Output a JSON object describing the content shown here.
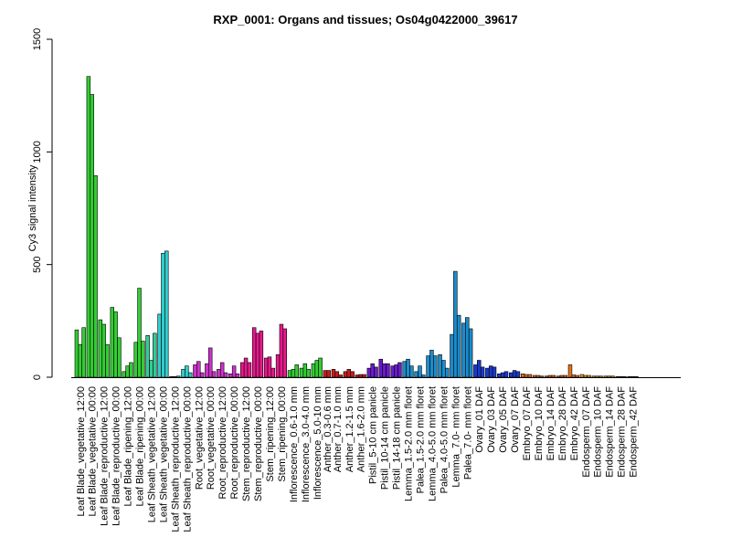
{
  "chart_data": {
    "type": "bar",
    "title": "RXP_0001: Organs and tissues; Os04g0422000_39617",
    "ylabel": "Cy3 signal intensity",
    "xlabel": "",
    "ylim": [
      0,
      1500
    ],
    "yticks": [
      0,
      500,
      1000,
      1500
    ],
    "grid": false,
    "groups": [
      {
        "label": "Leaf Blade_vegetative_12:00",
        "color": "#33cc33",
        "values": [
          210,
          145,
          220
        ]
      },
      {
        "label": "Leaf Blade_vegetative_00:00",
        "color": "#33cc33",
        "values": [
          1335,
          1255,
          895
        ]
      },
      {
        "label": "Leaf Blade_reproductive_12:00",
        "color": "#33cc33",
        "values": [
          255,
          235,
          145
        ]
      },
      {
        "label": "Leaf Blade_reproductive_00:00",
        "color": "#33cc33",
        "values": [
          310,
          290,
          175
        ]
      },
      {
        "label": "Leaf Blade_ripening_12:00",
        "color": "#33cc33",
        "values": [
          25,
          50,
          65
        ]
      },
      {
        "label": "Leaf Blade_ripening_00:00",
        "color": "#33cc33",
        "values": [
          155,
          395,
          160
        ]
      },
      {
        "label": "Leaf Sheath_vegetative_12:00",
        "color": "#33cc99",
        "values": [
          185,
          75,
          195
        ]
      },
      {
        "label": "Leaf Sheath_vegetative_00:00",
        "color": "#33cccc",
        "values": [
          280,
          550,
          560
        ]
      },
      {
        "label": "Leaf Sheath_reproductive_12:00",
        "color": "#33cccc",
        "values": [
          3,
          3,
          5
        ]
      },
      {
        "label": "Leaf Sheath_reproductive_00:00",
        "color": "#33cccc",
        "values": [
          35,
          50,
          20
        ]
      },
      {
        "label": "Root_vegetative_12:00",
        "color": "#cc33cc",
        "values": [
          55,
          70,
          20
        ]
      },
      {
        "label": "Root_vegetative_00:00",
        "color": "#cc33cc",
        "values": [
          60,
          130,
          25
        ]
      },
      {
        "label": "Root_reproductive_12:00",
        "color": "#cc33cc",
        "values": [
          35,
          65,
          20
        ]
      },
      {
        "label": "Root_reproductive_00:00",
        "color": "#cc33cc",
        "values": [
          15,
          50,
          15
        ]
      },
      {
        "label": "Stem_reproductive_12:00",
        "color": "#e61a8c",
        "values": [
          65,
          85,
          65
        ]
      },
      {
        "label": "Stem_reproductive_00:00",
        "color": "#e61a8c",
        "values": [
          220,
          195,
          205
        ]
      },
      {
        "label": "Stem_ripening_12:00",
        "color": "#e61a8c",
        "values": [
          85,
          90,
          40
        ]
      },
      {
        "label": "Stem_ripening_00:00",
        "color": "#e61a8c",
        "values": [
          100,
          235,
          215
        ]
      },
      {
        "label": "Inflorescence_0.6-1.0 mm",
        "color": "#33cc33",
        "values": [
          30,
          35,
          55
        ]
      },
      {
        "label": "Inflorescence_3.0-4.0 mm",
        "color": "#33cc33",
        "values": [
          40,
          60,
          35
        ]
      },
      {
        "label": "Inflorescence_5.0-10 mm",
        "color": "#33cc33",
        "values": [
          60,
          75,
          85
        ]
      },
      {
        "label": "Anther_0.3-0.6 mm",
        "color": "#cc1a1a",
        "values": [
          30,
          30
        ]
      },
      {
        "label": "Anther_0.7-1.0 mm",
        "color": "#cc1a1a",
        "values": [
          35,
          25,
          10
        ]
      },
      {
        "label": "Anther_1.2-1.5 mm",
        "color": "#cc1a1a",
        "values": [
          25,
          35,
          25
        ]
      },
      {
        "label": "Anther_1.6-2.0 mm",
        "color": "#cc1a1a",
        "values": [
          10,
          12,
          12
        ]
      },
      {
        "label": "Pistil_5-10 cm panicle",
        "color": "#6a1acc",
        "values": [
          40,
          60,
          45
        ]
      },
      {
        "label": "Pistil_10-14 cm panicle",
        "color": "#6a1acc",
        "values": [
          80,
          60,
          60
        ]
      },
      {
        "label": "Pistil_14-18 cm panicle",
        "color": "#6a1acc",
        "values": [
          50,
          55,
          65
        ]
      },
      {
        "label": "Lemma_1.5-2.0 mm floret",
        "color": "#1a8ccc",
        "values": [
          70,
          80,
          50
        ]
      },
      {
        "label": "Palea_1.5-2.0 mm floret",
        "color": "#1a8ccc",
        "values": [
          25,
          50,
          10
        ]
      },
      {
        "label": "Lemma_4.0-5.0 mm floret",
        "color": "#1a8ccc",
        "values": [
          95,
          120,
          95
        ]
      },
      {
        "label": "Palea_4.0-5.0 mm floret",
        "color": "#1a8ccc",
        "values": [
          100,
          75,
          40
        ]
      },
      {
        "label": "Lemma_7.0- mm floret",
        "color": "#1a8ccc",
        "values": [
          190,
          470,
          275
        ]
      },
      {
        "label": "Palea_7.0- mm floret",
        "color": "#1a8ccc",
        "values": [
          240,
          265,
          215
        ]
      },
      {
        "label": "Ovary_01 DAF",
        "color": "#1a3acc",
        "values": [
          55,
          75,
          45
        ]
      },
      {
        "label": "Ovary_03 DAF",
        "color": "#1a3acc",
        "values": [
          40,
          50,
          45
        ]
      },
      {
        "label": "Ovary_05 DAF",
        "color": "#1a3acc",
        "values": [
          15,
          20,
          25
        ]
      },
      {
        "label": "Ovary_07 DAF",
        "color": "#1a3acc",
        "values": [
          20,
          30,
          25
        ]
      },
      {
        "label": "Embryo_07 DAF",
        "color": "#e6731a",
        "values": [
          15,
          12,
          12
        ]
      },
      {
        "label": "Embryo_10 DAF",
        "color": "#e6731a",
        "values": [
          8,
          8,
          5
        ]
      },
      {
        "label": "Embryo_14 DAF",
        "color": "#e6731a",
        "values": [
          5,
          8,
          8
        ]
      },
      {
        "label": "Embryo_28 DAF",
        "color": "#e6731a",
        "values": [
          5,
          8,
          8
        ]
      },
      {
        "label": "Embryo_42 DAF",
        "color": "#e6731a",
        "values": [
          55,
          10,
          8
        ]
      },
      {
        "label": "Endosperm_07 DAF",
        "color": "#e6a01a",
        "values": [
          12,
          8,
          8
        ]
      },
      {
        "label": "Endosperm_10 DAF",
        "color": "#e6a01a",
        "values": [
          5,
          5,
          5
        ]
      },
      {
        "label": "Endosperm_14 DAF",
        "color": "#e6a01a",
        "values": [
          5,
          5,
          5
        ]
      },
      {
        "label": "Endosperm_28 DAF",
        "color": "#e6a01a",
        "values": [
          3,
          3,
          3
        ]
      },
      {
        "label": "Endosperm_42 DAF",
        "color": "#e6a01a",
        "values": [
          3,
          3,
          3
        ]
      }
    ]
  }
}
